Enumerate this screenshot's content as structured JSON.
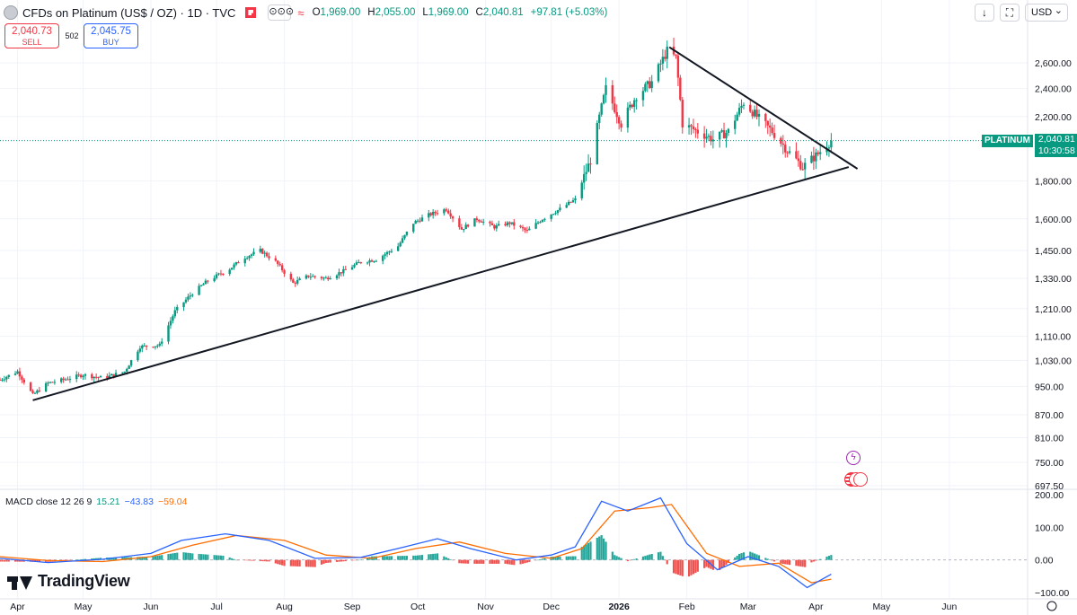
{
  "header": {
    "symbol_title": "CFDs on Platinum (US$ / OZ) · 1D · TVC",
    "more_label": "⊙⊙⊙",
    "ohlc": {
      "o": "1,969.00",
      "h": "2,055.00",
      "l": "1,969.00",
      "c": "2,040.81",
      "change": "+97.81 (+5.03%)"
    },
    "icons": [
      "symbol-logo-icon",
      "flag-icon",
      "more-icon",
      "tilde-icon"
    ]
  },
  "trade": {
    "sell_price": "2,040.73",
    "sell_label": "SELL",
    "spread": "502",
    "buy_price": "2,045.75",
    "buy_label": "BUY"
  },
  "toolbar": {
    "currency": "USD",
    "icons": [
      "arrow-down-icon",
      "fullscreen-icon"
    ]
  },
  "price_tag": {
    "name": "PLATINUM",
    "price": "2,040.81",
    "countdown": "10:30:58"
  },
  "macd": {
    "label": "MACD close 12 26 9",
    "histogram": "15.21",
    "macd": "−43.83",
    "signal": "−59.04"
  },
  "logo": {
    "text": "TradingView"
  },
  "colors": {
    "up": "#089981",
    "down": "#f23645",
    "macd_line": "#2962ff",
    "signal_line": "#ff6d00",
    "hist_up": "#26a69a",
    "hist_down": "#ef5350"
  },
  "chart_data": {
    "type": "line",
    "description_unit": "price USD per ounce, daily candles",
    "scale": "log",
    "y_tick_labels": [
      "2,600.00",
      "2,400.00",
      "2,200.00",
      "1,800.00",
      "1,600.00",
      "1,450.00",
      "1,330.00",
      "1,210.00",
      "1,110.00",
      "1,030.00",
      "950.00",
      "870.00",
      "810.00",
      "750.00",
      "697.50"
    ],
    "y_ticks": [
      2600,
      2400,
      2200,
      1800,
      1600,
      1450,
      1330,
      1210,
      1110,
      1030,
      950,
      870,
      810,
      750,
      697.5
    ],
    "x_tick_labels": [
      "Apr",
      "May",
      "Jun",
      "Jul",
      "Aug",
      "Sep",
      "Oct",
      "Nov",
      "Dec",
      "2026",
      "Feb",
      "Mar",
      "Apr",
      "May",
      "Jun"
    ],
    "series": [
      {
        "points": [
          [
            "2025-03-24",
            970
          ],
          [
            "2025-04-01",
            995
          ],
          [
            "2025-04-08",
            925
          ],
          [
            "2025-04-15",
            960
          ],
          [
            "2025-04-22",
            970
          ],
          [
            "2025-05-01",
            985
          ],
          [
            "2025-05-10",
            975
          ],
          [
            "2025-05-20",
            995
          ],
          [
            "2025-05-27",
            1075
          ],
          [
            "2025-06-05",
            1080
          ],
          [
            "2025-06-12",
            1200
          ],
          [
            "2025-06-20",
            1270
          ],
          [
            "2025-06-27",
            1320
          ],
          [
            "2025-07-07",
            1370
          ],
          [
            "2025-07-14",
            1420
          ],
          [
            "2025-07-21",
            1450
          ],
          [
            "2025-07-28",
            1400
          ],
          [
            "2025-08-05",
            1310
          ],
          [
            "2025-08-12",
            1340
          ],
          [
            "2025-08-20",
            1330
          ],
          [
            "2025-08-28",
            1360
          ],
          [
            "2025-09-05",
            1400
          ],
          [
            "2025-09-12",
            1410
          ],
          [
            "2025-09-22",
            1470
          ],
          [
            "2025-09-29",
            1580
          ],
          [
            "2025-10-06",
            1620
          ],
          [
            "2025-10-14",
            1650
          ],
          [
            "2025-10-21",
            1550
          ],
          [
            "2025-10-28",
            1600
          ],
          [
            "2025-11-05",
            1560
          ],
          [
            "2025-11-12",
            1580
          ],
          [
            "2025-11-20",
            1540
          ],
          [
            "2025-11-27",
            1600
          ],
          [
            "2025-12-05",
            1650
          ],
          [
            "2025-12-12",
            1700
          ],
          [
            "2025-12-19",
            1920
          ],
          [
            "2025-12-26",
            2400
          ],
          [
            "2026-01-02",
            2150
          ],
          [
            "2026-01-09",
            2350
          ],
          [
            "2026-01-16",
            2450
          ],
          [
            "2026-01-23",
            2700
          ],
          [
            "2026-01-27",
            2640
          ],
          [
            "2026-01-30",
            2150
          ],
          [
            "2026-02-06",
            2100
          ],
          [
            "2026-02-13",
            2050
          ],
          [
            "2026-02-20",
            2100
          ],
          [
            "2026-02-27",
            2300
          ],
          [
            "2026-03-05",
            2200
          ],
          [
            "2026-03-12",
            2100
          ],
          [
            "2026-03-19",
            1980
          ],
          [
            "2026-03-26",
            1880
          ],
          [
            "2026-04-02",
            1960
          ],
          [
            "2026-04-08",
            2040.81
          ]
        ]
      }
    ],
    "trendlines": [
      {
        "from": [
          "2025-04-08",
          910
        ],
        "to": [
          "2026-04-16",
          1880
        ]
      },
      {
        "from": [
          "2026-01-24",
          2730
        ],
        "to": [
          "2026-04-20",
          1870
        ]
      }
    ],
    "macd_panel": {
      "y_tick_labels": [
        "200.00",
        "100.00",
        "0.00",
        "−100.00"
      ],
      "y_ticks": [
        200,
        100,
        0,
        -100
      ],
      "macd": [
        [
          "2025-03-24",
          5
        ],
        [
          "2025-04-15",
          -8
        ],
        [
          "2025-05-10",
          2
        ],
        [
          "2025-06-01",
          20
        ],
        [
          "2025-06-15",
          60
        ],
        [
          "2025-07-05",
          80
        ],
        [
          "2025-07-25",
          60
        ],
        [
          "2025-08-15",
          5
        ],
        [
          "2025-09-05",
          8
        ],
        [
          "2025-09-25",
          40
        ],
        [
          "2025-10-10",
          65
        ],
        [
          "2025-10-25",
          35
        ],
        [
          "2025-11-15",
          0
        ],
        [
          "2025-12-01",
          15
        ],
        [
          "2025-12-12",
          40
        ],
        [
          "2025-12-24",
          180
        ],
        [
          "2026-01-05",
          150
        ],
        [
          "2026-01-20",
          190
        ],
        [
          "2026-02-01",
          50
        ],
        [
          "2026-02-15",
          -30
        ],
        [
          "2026-03-01",
          10
        ],
        [
          "2026-03-15",
          -20
        ],
        [
          "2026-03-28",
          -85
        ],
        [
          "2026-04-08",
          -43.83
        ]
      ],
      "signal": [
        [
          "2025-03-24",
          10
        ],
        [
          "2025-04-15",
          -2
        ],
        [
          "2025-05-10",
          -5
        ],
        [
          "2025-06-01",
          10
        ],
        [
          "2025-06-20",
          45
        ],
        [
          "2025-07-10",
          75
        ],
        [
          "2025-08-01",
          60
        ],
        [
          "2025-08-20",
          15
        ],
        [
          "2025-09-10",
          5
        ],
        [
          "2025-09-30",
          35
        ],
        [
          "2025-10-20",
          55
        ],
        [
          "2025-11-10",
          20
        ],
        [
          "2025-12-01",
          5
        ],
        [
          "2025-12-15",
          35
        ],
        [
          "2025-12-30",
          150
        ],
        [
          "2026-01-15",
          160
        ],
        [
          "2026-01-25",
          170
        ],
        [
          "2026-02-10",
          20
        ],
        [
          "2026-02-25",
          -20
        ],
        [
          "2026-03-15",
          -10
        ],
        [
          "2026-03-30",
          -70
        ],
        [
          "2026-04-08",
          -59.04
        ]
      ]
    }
  }
}
